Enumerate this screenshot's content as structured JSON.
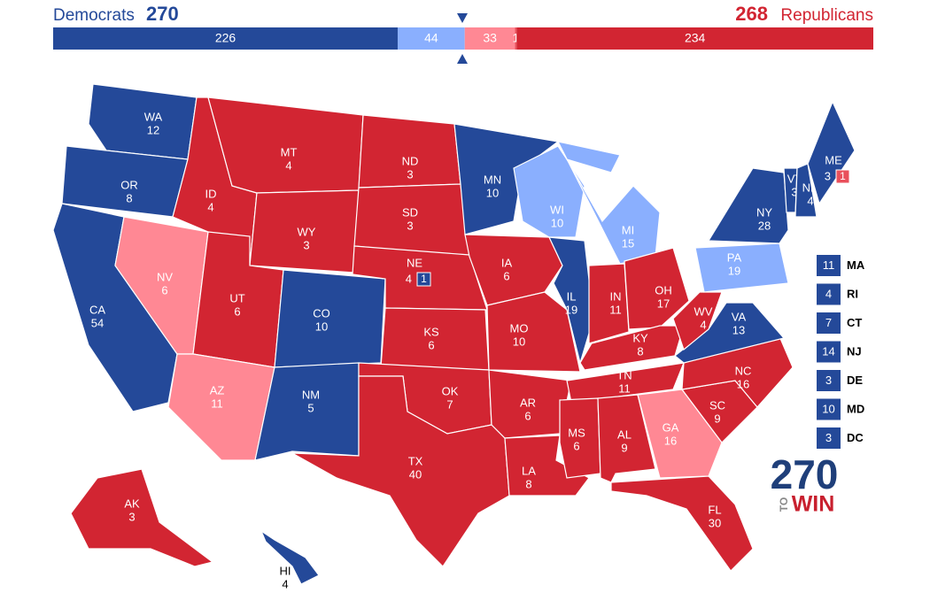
{
  "header": {
    "dem_label": "Democrats",
    "dem_total": 270,
    "rep_total": 268,
    "rep_label": "Republicans"
  },
  "ratings": {
    "safe_d": "#244999",
    "lean_d": "#8aaffe",
    "lean_r": "#ff8894",
    "tilt_r": "#e9505c",
    "safe_r": "#d22532"
  },
  "bar": [
    {
      "value": 226,
      "rating": "safe_d"
    },
    {
      "value": 44,
      "rating": "lean_d"
    },
    {
      "value": 33,
      "rating": "lean_r"
    },
    {
      "value": 1,
      "rating": "tilt_r"
    },
    {
      "value": 234,
      "rating": "safe_r"
    }
  ],
  "states": [
    {
      "abbr": "WA",
      "votes": 12,
      "rating": "safe_d"
    },
    {
      "abbr": "OR",
      "votes": 8,
      "rating": "safe_d"
    },
    {
      "abbr": "CA",
      "votes": 54,
      "rating": "safe_d"
    },
    {
      "abbr": "NV",
      "votes": 6,
      "rating": "lean_r"
    },
    {
      "abbr": "ID",
      "votes": 4,
      "rating": "safe_r"
    },
    {
      "abbr": "MT",
      "votes": 4,
      "rating": "safe_r"
    },
    {
      "abbr": "WY",
      "votes": 3,
      "rating": "safe_r"
    },
    {
      "abbr": "UT",
      "votes": 6,
      "rating": "safe_r"
    },
    {
      "abbr": "AZ",
      "votes": 11,
      "rating": "lean_r"
    },
    {
      "abbr": "CO",
      "votes": 10,
      "rating": "safe_d"
    },
    {
      "abbr": "NM",
      "votes": 5,
      "rating": "safe_d"
    },
    {
      "abbr": "ND",
      "votes": 3,
      "rating": "safe_r"
    },
    {
      "abbr": "SD",
      "votes": 3,
      "rating": "safe_r"
    },
    {
      "abbr": "NE",
      "votes": 4,
      "rating": "safe_r",
      "split": {
        "votes": 1,
        "rating": "safe_d"
      }
    },
    {
      "abbr": "KS",
      "votes": 6,
      "rating": "safe_r"
    },
    {
      "abbr": "OK",
      "votes": 7,
      "rating": "safe_r"
    },
    {
      "abbr": "TX",
      "votes": 40,
      "rating": "safe_r"
    },
    {
      "abbr": "MN",
      "votes": 10,
      "rating": "safe_d"
    },
    {
      "abbr": "IA",
      "votes": 6,
      "rating": "safe_r"
    },
    {
      "abbr": "MO",
      "votes": 10,
      "rating": "safe_r"
    },
    {
      "abbr": "AR",
      "votes": 6,
      "rating": "safe_r"
    },
    {
      "abbr": "LA",
      "votes": 8,
      "rating": "safe_r"
    },
    {
      "abbr": "WI",
      "votes": 10,
      "rating": "lean_d"
    },
    {
      "abbr": "IL",
      "votes": 19,
      "rating": "safe_d"
    },
    {
      "abbr": "MI",
      "votes": 15,
      "rating": "lean_d"
    },
    {
      "abbr": "IN",
      "votes": 11,
      "rating": "safe_r"
    },
    {
      "abbr": "OH",
      "votes": 17,
      "rating": "safe_r"
    },
    {
      "abbr": "KY",
      "votes": 8,
      "rating": "safe_r"
    },
    {
      "abbr": "TN",
      "votes": 11,
      "rating": "safe_r"
    },
    {
      "abbr": "MS",
      "votes": 6,
      "rating": "safe_r"
    },
    {
      "abbr": "AL",
      "votes": 9,
      "rating": "safe_r"
    },
    {
      "abbr": "GA",
      "votes": 16,
      "rating": "lean_r"
    },
    {
      "abbr": "FL",
      "votes": 30,
      "rating": "safe_r"
    },
    {
      "abbr": "SC",
      "votes": 9,
      "rating": "safe_r"
    },
    {
      "abbr": "NC",
      "votes": 16,
      "rating": "safe_r"
    },
    {
      "abbr": "VA",
      "votes": 13,
      "rating": "safe_d"
    },
    {
      "abbr": "WV",
      "votes": 4,
      "rating": "safe_r"
    },
    {
      "abbr": "PA",
      "votes": 19,
      "rating": "lean_d"
    },
    {
      "abbr": "NY",
      "votes": 28,
      "rating": "safe_d"
    },
    {
      "abbr": "VT",
      "votes": 3,
      "rating": "safe_d"
    },
    {
      "abbr": "NH",
      "votes": 4,
      "rating": "safe_d"
    },
    {
      "abbr": "ME",
      "votes": 3,
      "rating": "safe_d",
      "split": {
        "votes": 1,
        "rating": "tilt_r"
      }
    },
    {
      "abbr": "AK",
      "votes": 3,
      "rating": "safe_r"
    },
    {
      "abbr": "HI",
      "votes": 4,
      "rating": "safe_d"
    }
  ],
  "small_states": [
    {
      "abbr": "MA",
      "votes": 11,
      "rating": "safe_d"
    },
    {
      "abbr": "RI",
      "votes": 4,
      "rating": "safe_d"
    },
    {
      "abbr": "CT",
      "votes": 7,
      "rating": "safe_d"
    },
    {
      "abbr": "NJ",
      "votes": 14,
      "rating": "safe_d"
    },
    {
      "abbr": "DE",
      "votes": 3,
      "rating": "safe_d"
    },
    {
      "abbr": "MD",
      "votes": 10,
      "rating": "safe_d"
    },
    {
      "abbr": "DC",
      "votes": 3,
      "rating": "safe_d"
    }
  ],
  "logo": {
    "number": "270",
    "to": "TO",
    "win": "WIN"
  }
}
